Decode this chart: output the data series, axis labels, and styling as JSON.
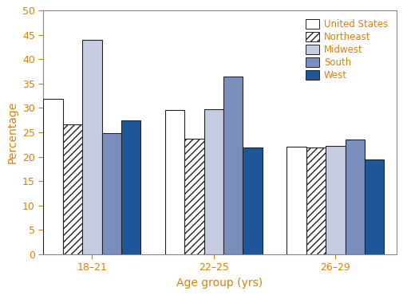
{
  "groups": [
    "18–21",
    "22–25",
    "26–29"
  ],
  "series": {
    "United States": [
      31.8,
      29.6,
      22.0
    ],
    "Northeast": [
      26.6,
      23.7,
      21.9
    ],
    "Midwest": [
      44.0,
      29.8,
      22.3
    ],
    "South": [
      24.8,
      36.4,
      23.5
    ],
    "West": [
      27.5,
      21.9,
      19.5
    ]
  },
  "bar_face_colors": {
    "United States": "#ffffff",
    "Northeast": "#ffffff",
    "Midwest": "#c8cce0",
    "South": "#7b8fbf",
    "West": "#1e5799"
  },
  "hatches": {
    "United States": "",
    "Northeast": "////",
    "Midwest": "",
    "South": "",
    "West": ""
  },
  "legend_labels": [
    "United States",
    "Northeast",
    "Midwest",
    "South",
    "West"
  ],
  "legend_text_color": "#d4820a",
  "xlabel": "Age group (yrs)",
  "ylabel": "Percentage",
  "ylim": [
    0,
    50
  ],
  "yticks": [
    0,
    5,
    10,
    15,
    20,
    25,
    30,
    35,
    40,
    45,
    50
  ],
  "bar_width": 0.16,
  "group_positions": [
    0.4,
    1.4,
    2.4
  ],
  "background_color": "#ffffff",
  "edge_color": "#222222",
  "axis_text_color": "#d4820a",
  "tick_color": "#d4820a"
}
